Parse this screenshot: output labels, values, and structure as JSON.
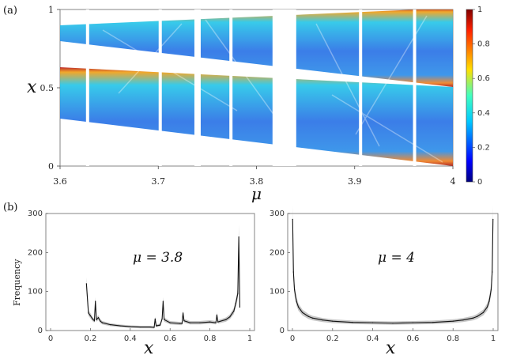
{
  "panel_labels": [
    "(a)",
    "(b)"
  ],
  "chart_data": [
    {
      "type": "heatmap",
      "xlabel": "μ",
      "ylabel": "x",
      "xlim": [
        3.6,
        4.0
      ],
      "ylim": [
        0,
        1
      ],
      "xticks": [
        "3.6",
        "3.7",
        "3.8",
        "3.9",
        "4"
      ],
      "yticks": [
        "0",
        "0.5",
        "1"
      ],
      "colorbar": {
        "range": [
          0,
          1
        ],
        "ticks": [
          "0",
          "0.2",
          "0.4",
          "0.6",
          "0.8",
          "1"
        ],
        "colormap": "jet"
      },
      "periodic_windows_mu": [
        3.628,
        3.702,
        3.74,
        3.774,
        3.8284,
        3.906,
        3.961
      ]
    },
    {
      "type": "line",
      "annotation": "μ = 3.8",
      "xlabel": "x",
      "ylabel": "Frequency",
      "xlim": [
        0,
        1
      ],
      "ylim": [
        0,
        300
      ],
      "xticks": [
        "0",
        "0.2",
        "0.4",
        "0.6",
        "0.8",
        "1"
      ],
      "yticks": [
        "0",
        "100",
        "200",
        "300"
      ],
      "x": [
        0.18,
        0.19,
        0.2,
        0.21,
        0.22,
        0.225,
        0.23,
        0.24,
        0.25,
        0.26,
        0.3,
        0.35,
        0.4,
        0.45,
        0.5,
        0.52,
        0.525,
        0.53,
        0.55,
        0.56,
        0.565,
        0.57,
        0.6,
        0.65,
        0.66,
        0.665,
        0.67,
        0.7,
        0.75,
        0.8,
        0.83,
        0.835,
        0.84,
        0.88,
        0.9,
        0.92,
        0.93,
        0.94,
        0.945,
        0.95
      ],
      "values": [
        120,
        45,
        38,
        30,
        25,
        75,
        28,
        33,
        24,
        20,
        15,
        12,
        10,
        9,
        9,
        8,
        30,
        12,
        14,
        30,
        75,
        28,
        20,
        18,
        18,
        45,
        25,
        20,
        20,
        22,
        20,
        40,
        22,
        28,
        35,
        50,
        70,
        95,
        240,
        60
      ]
    },
    {
      "type": "line",
      "annotation": "μ = 4",
      "xlabel": "x",
      "ylabel": "",
      "xlim": [
        0,
        1
      ],
      "ylim": [
        0,
        300
      ],
      "xticks": [
        "0",
        "0.2",
        "0.4",
        "0.6",
        "0.8",
        "1"
      ],
      "yticks": [
        "0",
        "100",
        "200",
        "300"
      ],
      "x": [
        0.001,
        0.005,
        0.01,
        0.02,
        0.03,
        0.05,
        0.08,
        0.1,
        0.15,
        0.2,
        0.3,
        0.4,
        0.5,
        0.6,
        0.7,
        0.8,
        0.85,
        0.9,
        0.92,
        0.95,
        0.97,
        0.98,
        0.99,
        0.995,
        0.999
      ],
      "values": [
        285,
        150,
        105,
        75,
        60,
        46,
        36,
        32,
        27,
        24,
        21,
        20,
        19,
        20,
        21,
        24,
        27,
        32,
        36,
        46,
        60,
        75,
        105,
        150,
        285
      ]
    }
  ]
}
